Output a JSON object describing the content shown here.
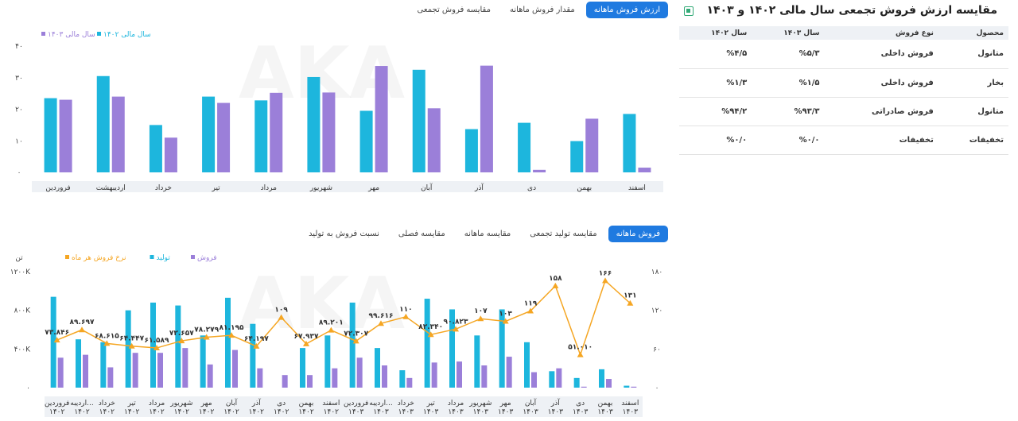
{
  "top_tabs": [
    "ارزش فروش ماهانه",
    "مقدار فروش ماهانه",
    "مقایسه فروش تجمعی"
  ],
  "bottom_tabs": [
    "فروش ماهانه",
    "مقایسه تولید تجمعی",
    "مقایسه ماهانه",
    "مقایسه فصلی",
    "نسبت فروش به تولید"
  ],
  "table": {
    "title": "مقایسه ارزش فروش تجمعی سال مالی ۱۴۰۲ و ۱۴۰۳",
    "headers": [
      "محصول",
      "نوع فروش",
      "سال ۱۴۰۳",
      "سال ۱۴۰۲"
    ],
    "rows": [
      [
        "متانول",
        "فروش داخلی",
        "%۵/۳",
        "%۴/۵"
      ],
      [
        "بخار",
        "فروش داخلی",
        "%۱/۵",
        "%۱/۳"
      ],
      [
        "متانول",
        "فروش صادراتی",
        "%۹۳/۳",
        "%۹۴/۲"
      ],
      [
        "تخفیفات",
        "تخفیفات",
        "%۰/۰",
        "%۰/۰"
      ]
    ]
  },
  "colors": {
    "y1402": "#1db6dd",
    "y1403": "#9b7fd9",
    "rate": "#f5a623",
    "accent": "#1f7ae0"
  },
  "chart_data": [
    {
      "type": "bar",
      "title": "",
      "categories": [
        "فروردین",
        "اردیبهشت",
        "خرداد",
        "تیر",
        "مرداد",
        "شهریور",
        "مهر",
        "آبان",
        "آذر",
        "دی",
        "بهمن",
        "اسفند"
      ],
      "series": [
        {
          "name": "سال مالی ۱۴۰۲",
          "color": "#1db6dd",
          "values": [
            23.5,
            30.5,
            15,
            24,
            22.8,
            30.2,
            19.5,
            32.5,
            13.7,
            15.7,
            9.9,
            18.5
          ]
        },
        {
          "name": "سال مالی ۱۴۰۳",
          "color": "#9b7fd9",
          "values": [
            23,
            24,
            11,
            22,
            25.2,
            25.3,
            33.7,
            20.3,
            33.8,
            0.8,
            17,
            1.5
          ]
        }
      ],
      "y_ticks": [
        "۰",
        "۱۰",
        "۲۰",
        "۳۰",
        "۴۰"
      ],
      "ylim": [
        0,
        40
      ],
      "legend_position": "top-left",
      "grid": false
    },
    {
      "type": "bar-line",
      "title": "",
      "y_left_label": "تن",
      "y_left_ticks": [
        "۰",
        "۴۰۰K",
        "۸۰۰K",
        "۱۲۰۰K"
      ],
      "y_left_lim": [
        0,
        1200000
      ],
      "y_right_ticks": [
        "۰",
        "۶۰",
        "۱۲۰",
        "۱۸۰"
      ],
      "y_right_lim": [
        0,
        180
      ],
      "legend": [
        {
          "name": "فروش",
          "color": "#9b7fd9"
        },
        {
          "name": "تولید",
          "color": "#1db6dd"
        },
        {
          "name": "نرخ فروش هر ماه",
          "color": "#f5a623"
        }
      ],
      "categories": [
        [
          "فروردین",
          "۱۴۰۲"
        ],
        [
          "اردیبه...",
          "۱۴۰۲"
        ],
        [
          "خرداد",
          "۱۴۰۲"
        ],
        [
          "تیر",
          "۱۴۰۲"
        ],
        [
          "مرداد",
          "۱۴۰۲"
        ],
        [
          "شهریور",
          "۱۴۰۲"
        ],
        [
          "مهر",
          "۱۴۰۲"
        ],
        [
          "آبان",
          "۱۴۰۲"
        ],
        [
          "آذر",
          "۱۴۰۲"
        ],
        [
          "دی",
          "۱۴۰۲"
        ],
        [
          "بهمن",
          "۱۴۰۲"
        ],
        [
          "اسفند",
          "۱۴۰۲"
        ],
        [
          "فروردین",
          "۱۴۰۳"
        ],
        [
          "اردیبه...",
          "۱۴۰۳"
        ],
        [
          "خرداد",
          "۱۴۰۳"
        ],
        [
          "تیر",
          "۱۴۰۳"
        ],
        [
          "مرداد",
          "۱۴۰۳"
        ],
        [
          "شهریور",
          "۱۴۰۳"
        ],
        [
          "مهر",
          "۱۴۰۳"
        ],
        [
          "آبان",
          "۱۴۰۳"
        ],
        [
          "آذر",
          "۱۴۰۳"
        ],
        [
          "دی",
          "۱۴۰۳"
        ],
        [
          "بهمن",
          "۱۴۰۳"
        ],
        [
          "اسفند",
          "۱۴۰۳"
        ]
      ],
      "production": [
        940000,
        500000,
        470000,
        800000,
        880000,
        850000,
        540000,
        930000,
        660000,
        0,
        410000,
        540000,
        880000,
        410000,
        180000,
        920000,
        810000,
        540000,
        810000,
        470000,
        170000,
        100000,
        190000,
        20000
      ],
      "sales": [
        310000,
        340000,
        210000,
        360000,
        360000,
        410000,
        240000,
        390000,
        200000,
        130000,
        130000,
        200000,
        310000,
        230000,
        100000,
        260000,
        270000,
        230000,
        320000,
        160000,
        200000,
        10000,
        90000,
        10000
      ],
      "rate": [
        73.846,
        89.697,
        68.615,
        64.447,
        61.589,
        72.657,
        78.279,
        81.195,
        64.197,
        109,
        67.937,
        89.201,
        72.307,
        99.616,
        110,
        82.34,
        90.823,
        107,
        103,
        119,
        158,
        51.01,
        166,
        131
      ],
      "rate_labels": [
        "۷۳.۸۴۶",
        "۸۹.۶۹۷",
        "۶۸.۶۱۵",
        "۶۴.۴۴۷",
        "۶۱.۵۸۹",
        "۷۲.۶۵۷",
        "۷۸.۲۷۹",
        "۸۱.۱۹۵",
        "۶۴.۱۹۷",
        "۱۰۹",
        "۶۷.۹۳۷",
        "۸۹.۲۰۱",
        "۷۲.۳۰۷",
        "۹۹.۶۱۶",
        "۱۱۰",
        "۸۲.۳۴۰",
        "۹۰.۸۲۳",
        "۱۰۷",
        "۱۰۳",
        "۱۱۹",
        "۱۵۸",
        "۵۱.۰۱۰",
        "۱۶۶",
        "۱۳۱"
      ]
    }
  ]
}
